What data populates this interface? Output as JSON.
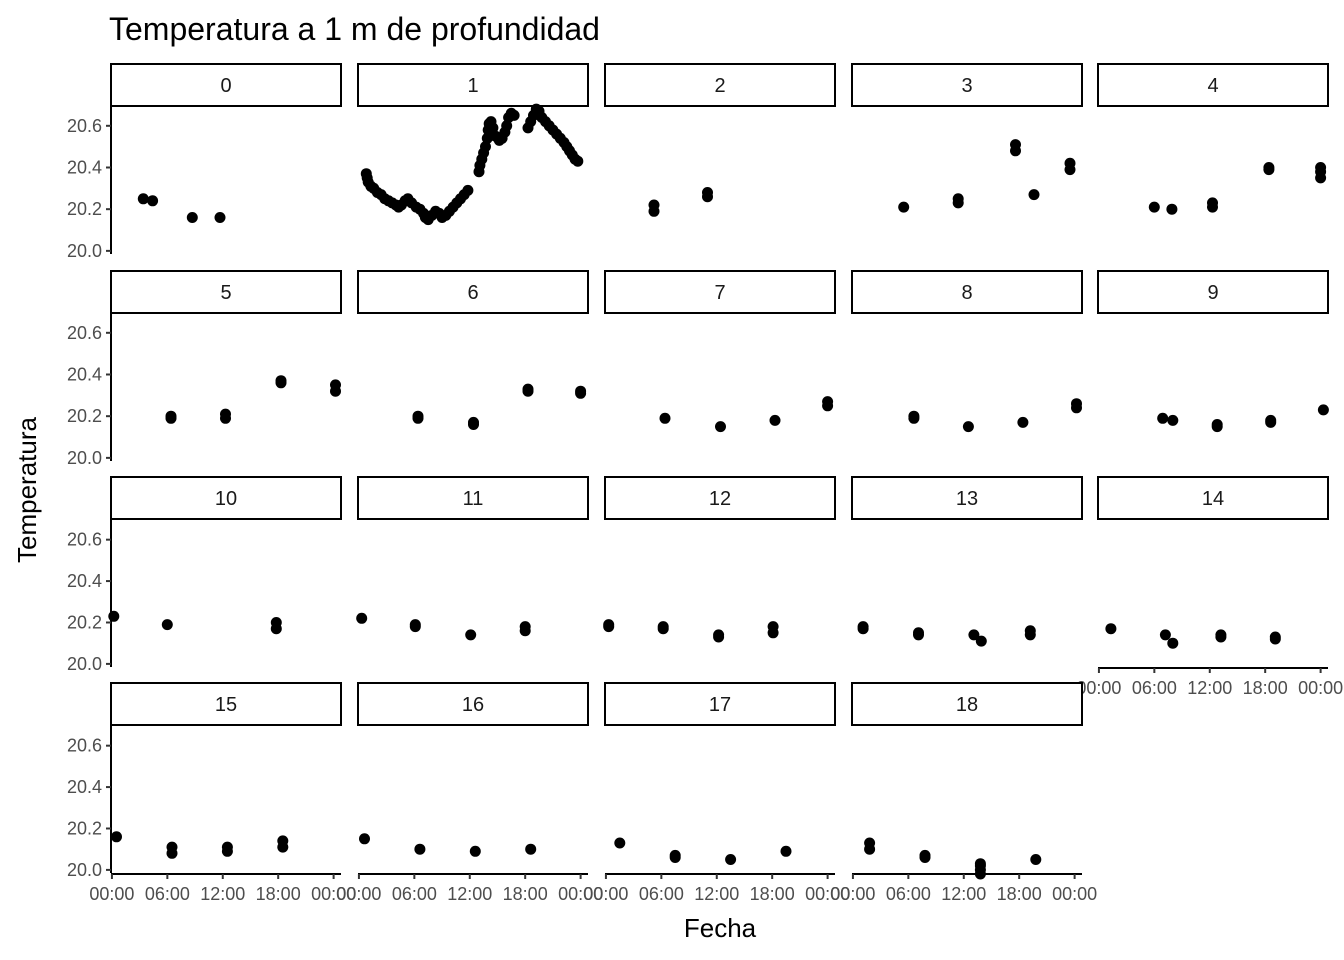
{
  "chart_data": {
    "type": "scatter",
    "title": "Temperatura a 1 m de profundidad",
    "xlabel": "Fecha",
    "ylabel": "Temperatura",
    "y_ticks": [
      "20.0",
      "20.2",
      "20.4",
      "20.6"
    ],
    "y_tick_values": [
      20.0,
      20.2,
      20.4,
      20.6
    ],
    "ylim": [
      19.985,
      20.695
    ],
    "x_ticks": [
      "00:00",
      "06:00",
      "12:00",
      "18:00",
      "00:00"
    ],
    "x_tick_hours": [
      0,
      6,
      12,
      18,
      24
    ],
    "xlim_hours": [
      -0.1,
      24.8
    ],
    "point_color": "#000000",
    "facets": [
      {
        "label": "0",
        "points": [
          [
            3.4,
            20.25
          ],
          [
            4.4,
            20.24
          ],
          [
            8.7,
            20.16
          ],
          [
            11.7,
            20.16
          ]
        ]
      },
      {
        "label": "1",
        "points": [
          [
            0.8,
            20.37
          ],
          [
            0.9,
            20.35
          ],
          [
            1.0,
            20.33
          ],
          [
            1.3,
            20.31
          ],
          [
            1.6,
            20.3
          ],
          [
            2.0,
            20.28
          ],
          [
            2.4,
            20.27
          ],
          [
            2.8,
            20.25
          ],
          [
            3.2,
            20.24
          ],
          [
            3.6,
            20.23
          ],
          [
            4.0,
            20.22
          ],
          [
            4.3,
            20.21
          ],
          [
            4.6,
            20.22
          ],
          [
            5.0,
            20.24
          ],
          [
            5.3,
            20.25
          ],
          [
            5.7,
            20.23
          ],
          [
            6.2,
            20.21
          ],
          [
            6.6,
            20.2
          ],
          [
            7.0,
            20.18
          ],
          [
            7.2,
            20.16
          ],
          [
            7.5,
            20.15
          ],
          [
            7.9,
            20.17
          ],
          [
            8.3,
            20.19
          ],
          [
            8.7,
            20.18
          ],
          [
            9.0,
            20.16
          ],
          [
            9.4,
            20.17
          ],
          [
            9.8,
            20.19
          ],
          [
            10.2,
            20.21
          ],
          [
            10.6,
            20.23
          ],
          [
            11.0,
            20.25
          ],
          [
            11.4,
            20.27
          ],
          [
            11.8,
            20.29
          ],
          [
            13.0,
            20.38
          ],
          [
            13.1,
            20.41
          ],
          [
            13.3,
            20.44
          ],
          [
            13.5,
            20.47
          ],
          [
            13.7,
            20.5
          ],
          [
            13.9,
            20.54
          ],
          [
            14.0,
            20.58
          ],
          [
            14.1,
            20.61
          ],
          [
            14.3,
            20.62
          ],
          [
            14.5,
            20.59
          ],
          [
            14.8,
            20.55
          ],
          [
            15.2,
            20.53
          ],
          [
            15.5,
            20.54
          ],
          [
            15.8,
            20.57
          ],
          [
            16.0,
            20.6
          ],
          [
            16.2,
            20.64
          ],
          [
            16.5,
            20.66
          ],
          [
            16.8,
            20.65
          ],
          [
            18.3,
            20.59
          ],
          [
            18.6,
            20.62
          ],
          [
            18.9,
            20.65
          ],
          [
            19.2,
            20.68
          ],
          [
            19.5,
            20.67
          ],
          [
            19.8,
            20.64
          ],
          [
            20.2,
            20.62
          ],
          [
            20.6,
            20.6
          ],
          [
            21.0,
            20.58
          ],
          [
            21.4,
            20.56
          ],
          [
            21.8,
            20.54
          ],
          [
            22.2,
            20.52
          ],
          [
            22.5,
            20.5
          ],
          [
            22.8,
            20.48
          ],
          [
            23.1,
            20.46
          ],
          [
            23.4,
            20.44
          ],
          [
            23.7,
            20.43
          ]
        ]
      },
      {
        "label": "2",
        "points": [
          [
            5.2,
            20.19
          ],
          [
            5.2,
            20.22
          ],
          [
            11.0,
            20.26
          ],
          [
            11.0,
            20.28
          ]
        ]
      },
      {
        "label": "3",
        "points": [
          [
            5.5,
            20.21
          ],
          [
            11.4,
            20.23
          ],
          [
            11.4,
            20.25
          ],
          [
            17.6,
            20.48
          ],
          [
            17.6,
            20.51
          ],
          [
            19.6,
            20.27
          ],
          [
            23.5,
            20.39
          ],
          [
            23.5,
            20.42
          ]
        ]
      },
      {
        "label": "4",
        "points": [
          [
            6.0,
            20.21
          ],
          [
            7.9,
            20.2
          ],
          [
            12.3,
            20.21
          ],
          [
            12.3,
            20.23
          ],
          [
            18.4,
            20.39
          ],
          [
            18.4,
            20.4
          ],
          [
            24.0,
            20.35
          ],
          [
            24.0,
            20.38
          ],
          [
            24.0,
            20.4
          ]
        ]
      },
      {
        "label": "5",
        "points": [
          [
            6.4,
            20.19
          ],
          [
            6.4,
            20.2
          ],
          [
            12.3,
            20.19
          ],
          [
            12.3,
            20.21
          ],
          [
            18.3,
            20.36
          ],
          [
            18.3,
            20.37
          ],
          [
            24.2,
            20.32
          ],
          [
            24.2,
            20.35
          ]
        ]
      },
      {
        "label": "6",
        "points": [
          [
            6.4,
            20.19
          ],
          [
            6.4,
            20.2
          ],
          [
            12.4,
            20.16
          ],
          [
            12.4,
            20.17
          ],
          [
            18.3,
            20.32
          ],
          [
            18.3,
            20.33
          ],
          [
            24.0,
            20.31
          ],
          [
            24.0,
            20.32
          ]
        ]
      },
      {
        "label": "7",
        "points": [
          [
            6.4,
            20.19
          ],
          [
            12.4,
            20.15
          ],
          [
            18.3,
            20.18
          ],
          [
            24.0,
            20.25
          ],
          [
            24.0,
            20.27
          ]
        ]
      },
      {
        "label": "8",
        "points": [
          [
            6.6,
            20.19
          ],
          [
            6.6,
            20.2
          ],
          [
            12.5,
            20.15
          ],
          [
            18.4,
            20.17
          ],
          [
            24.2,
            20.24
          ],
          [
            24.2,
            20.26
          ]
        ]
      },
      {
        "label": "9",
        "points": [
          [
            6.9,
            20.19
          ],
          [
            8.0,
            20.18
          ],
          [
            12.8,
            20.15
          ],
          [
            12.8,
            20.16
          ],
          [
            18.6,
            20.17
          ],
          [
            18.6,
            20.18
          ],
          [
            24.3,
            20.23
          ]
        ]
      },
      {
        "label": "10",
        "points": [
          [
            0.2,
            20.23
          ],
          [
            6.0,
            20.19
          ],
          [
            17.8,
            20.17
          ],
          [
            17.8,
            20.2
          ]
        ]
      },
      {
        "label": "11",
        "points": [
          [
            0.3,
            20.22
          ],
          [
            6.1,
            20.18
          ],
          [
            6.1,
            20.19
          ],
          [
            12.1,
            20.14
          ],
          [
            18.0,
            20.16
          ],
          [
            18.0,
            20.18
          ]
        ]
      },
      {
        "label": "12",
        "points": [
          [
            0.3,
            20.18
          ],
          [
            0.3,
            20.19
          ],
          [
            6.2,
            20.17
          ],
          [
            6.2,
            20.18
          ],
          [
            12.2,
            20.13
          ],
          [
            12.2,
            20.14
          ],
          [
            18.1,
            20.15
          ],
          [
            18.1,
            20.18
          ]
        ]
      },
      {
        "label": "13",
        "points": [
          [
            1.1,
            20.17
          ],
          [
            1.1,
            20.18
          ],
          [
            7.1,
            20.14
          ],
          [
            7.1,
            20.15
          ],
          [
            13.1,
            20.14
          ],
          [
            13.9,
            20.11
          ],
          [
            19.2,
            20.14
          ],
          [
            19.2,
            20.16
          ]
        ]
      },
      {
        "label": "14",
        "points": [
          [
            1.3,
            20.17
          ],
          [
            7.2,
            20.14
          ],
          [
            8.0,
            20.1
          ],
          [
            13.2,
            20.13
          ],
          [
            13.2,
            20.14
          ],
          [
            19.1,
            20.12
          ],
          [
            19.1,
            20.13
          ]
        ]
      },
      {
        "label": "15",
        "points": [
          [
            0.5,
            20.16
          ],
          [
            6.5,
            20.08
          ],
          [
            6.5,
            20.11
          ],
          [
            12.5,
            20.09
          ],
          [
            12.5,
            20.11
          ],
          [
            18.5,
            20.11
          ],
          [
            18.5,
            20.14
          ]
        ]
      },
      {
        "label": "16",
        "points": [
          [
            0.6,
            20.15
          ],
          [
            6.6,
            20.1
          ],
          [
            12.6,
            20.09
          ],
          [
            18.6,
            20.1
          ]
        ]
      },
      {
        "label": "17",
        "points": [
          [
            1.5,
            20.13
          ],
          [
            7.5,
            20.06
          ],
          [
            7.5,
            20.07
          ],
          [
            13.5,
            20.05
          ],
          [
            19.5,
            20.09
          ]
        ]
      },
      {
        "label": "18",
        "points": [
          [
            1.8,
            20.1
          ],
          [
            1.8,
            20.13
          ],
          [
            7.8,
            20.06
          ],
          [
            7.8,
            20.07
          ],
          [
            13.8,
            19.98
          ],
          [
            13.8,
            20.0
          ],
          [
            13.8,
            20.02
          ],
          [
            13.8,
            20.03
          ],
          [
            19.8,
            20.05
          ]
        ]
      }
    ]
  }
}
